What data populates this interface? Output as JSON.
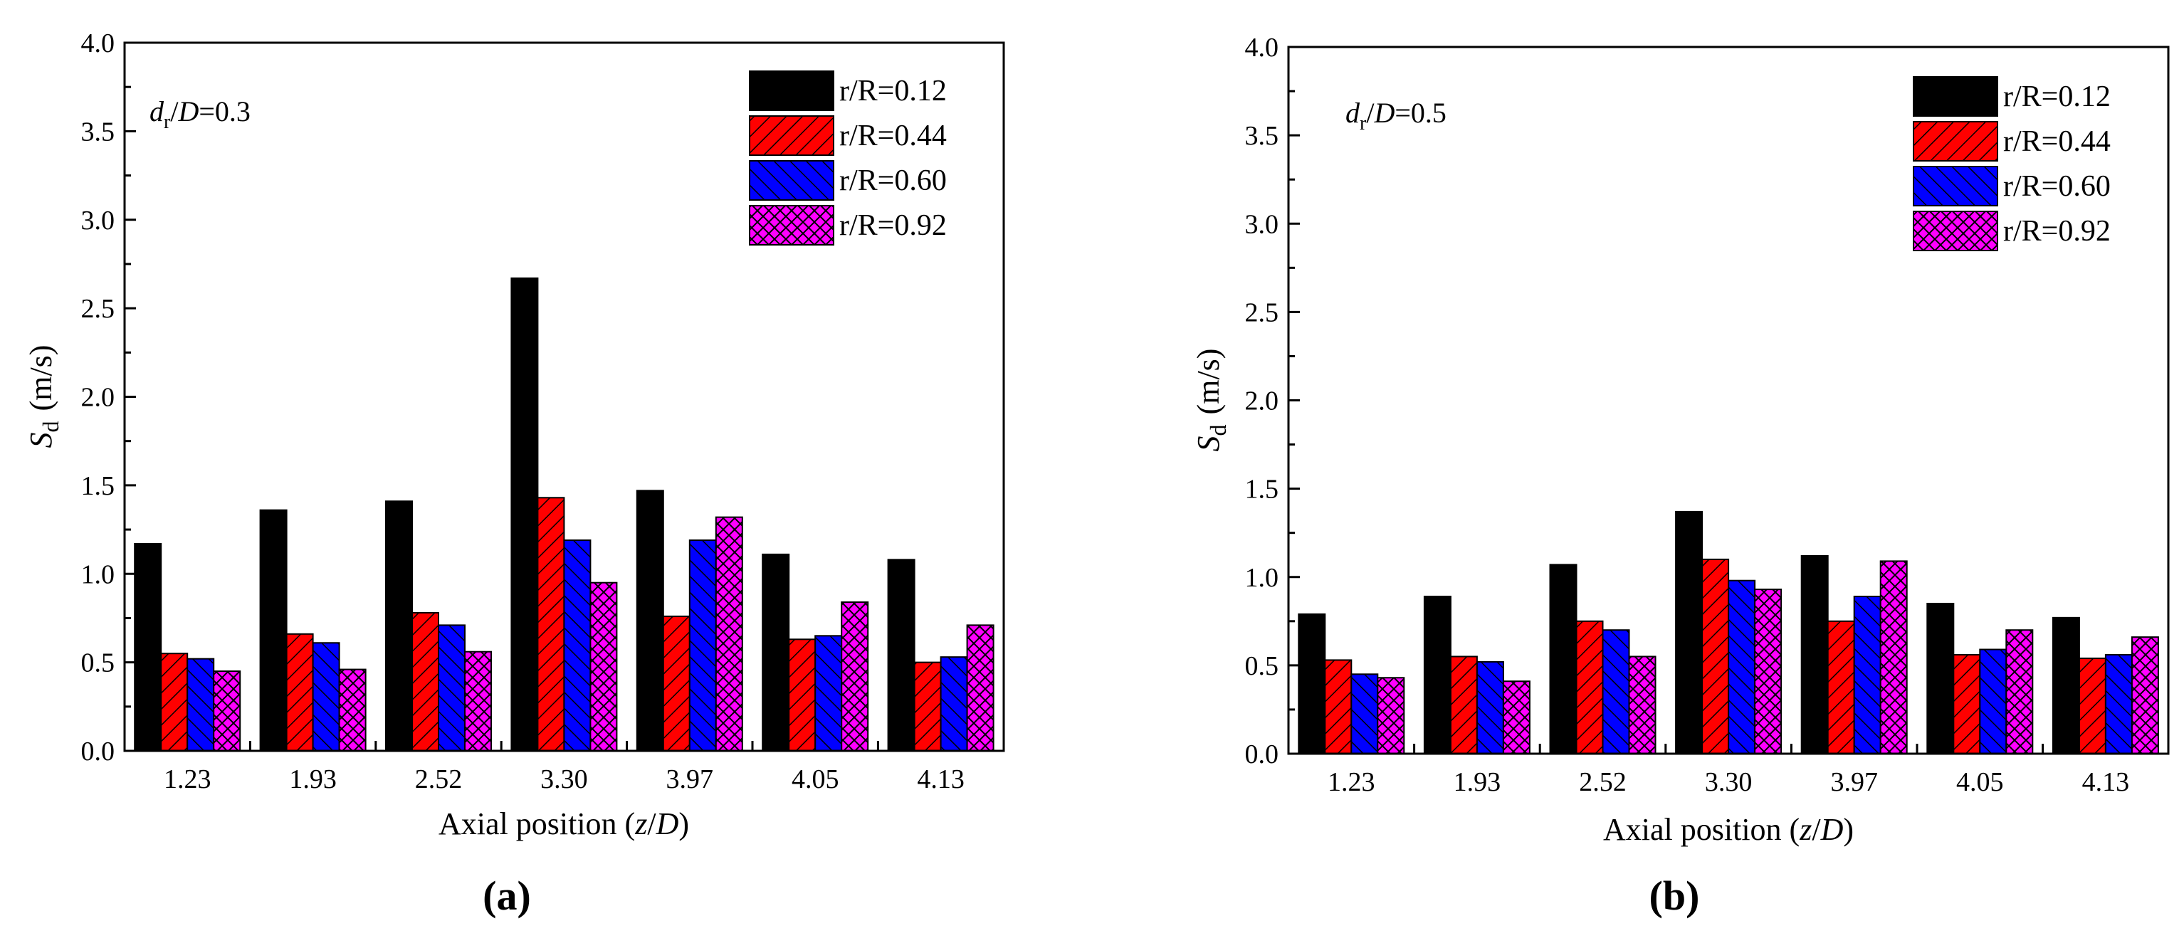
{
  "colors": {
    "black": "#000000",
    "red": "#ff0000",
    "blue": "#0000ff",
    "magenta": "#ff00ff"
  },
  "chart_data": [
    {
      "type": "bar",
      "panel_label": "(a)",
      "annotation": {
        "d_sym": "d",
        "d_sub": "r",
        "slash": "/",
        "D_sym": "D",
        "value": "=0.3"
      },
      "xlabel": {
        "main": "Axial position (",
        "z": "z",
        "slash": "/",
        "D": "D",
        "close": ")"
      },
      "ylabel": {
        "S": "S",
        "sub": "d",
        "units": "(m/s)"
      },
      "ylim": [
        0,
        4.0
      ],
      "yticks": [
        "0.0",
        "0.5",
        "1.0",
        "1.5",
        "2.0",
        "2.5",
        "3.0",
        "3.5",
        "4.0"
      ],
      "categories": [
        "1.23",
        "1.93",
        "2.52",
        "3.30",
        "3.97",
        "4.05",
        "4.13"
      ],
      "legend_position": "top-right",
      "series": [
        {
          "name": "r/R=0.12",
          "color": "#000000",
          "pattern": "solid",
          "values": [
            1.17,
            1.36,
            1.41,
            2.67,
            1.47,
            1.11,
            1.08
          ]
        },
        {
          "name": "r/R=0.44",
          "color": "#ff0000",
          "pattern": "forward-hatch",
          "values": [
            0.55,
            0.66,
            0.78,
            1.43,
            0.76,
            0.63,
            0.5
          ]
        },
        {
          "name": "r/R=0.60",
          "color": "#0000ff",
          "pattern": "back-hatch",
          "values": [
            0.52,
            0.61,
            0.71,
            1.19,
            1.19,
            0.65,
            0.53
          ]
        },
        {
          "name": "r/R=0.92",
          "color": "#ff00ff",
          "pattern": "cross-hatch",
          "values": [
            0.45,
            0.46,
            0.56,
            0.95,
            1.32,
            0.84,
            0.71
          ]
        }
      ]
    },
    {
      "type": "bar",
      "panel_label": "(b)",
      "annotation": {
        "d_sym": "d",
        "d_sub": "r",
        "slash": "/",
        "D_sym": "D",
        "value": "=0.5"
      },
      "xlabel": {
        "main": "Axial position (",
        "z": "z",
        "slash": "/",
        "D": "D",
        "close": ")"
      },
      "ylabel": {
        "S": "S",
        "sub": "d",
        "units": "(m/s)"
      },
      "ylim": [
        0,
        4.0
      ],
      "yticks": [
        "0.0",
        "0.5",
        "1.0",
        "1.5",
        "2.0",
        "2.5",
        "3.0",
        "3.5",
        "4.0"
      ],
      "categories": [
        "1.23",
        "1.93",
        "2.52",
        "3.30",
        "3.97",
        "4.05",
        "4.13"
      ],
      "legend_position": "top-right",
      "series": [
        {
          "name": "r/R=0.12",
          "color": "#000000",
          "pattern": "solid",
          "values": [
            0.79,
            0.89,
            1.07,
            1.37,
            1.12,
            0.85,
            0.77
          ]
        },
        {
          "name": "r/R=0.44",
          "color": "#ff0000",
          "pattern": "forward-hatch",
          "values": [
            0.53,
            0.55,
            0.75,
            1.1,
            0.75,
            0.56,
            0.54
          ]
        },
        {
          "name": "r/R=0.60",
          "color": "#0000ff",
          "pattern": "back-hatch",
          "values": [
            0.45,
            0.52,
            0.7,
            0.98,
            0.89,
            0.59,
            0.56
          ]
        },
        {
          "name": "r/R=0.92",
          "color": "#ff00ff",
          "pattern": "cross-hatch",
          "values": [
            0.43,
            0.41,
            0.55,
            0.93,
            1.09,
            0.7,
            0.66
          ]
        }
      ]
    }
  ]
}
